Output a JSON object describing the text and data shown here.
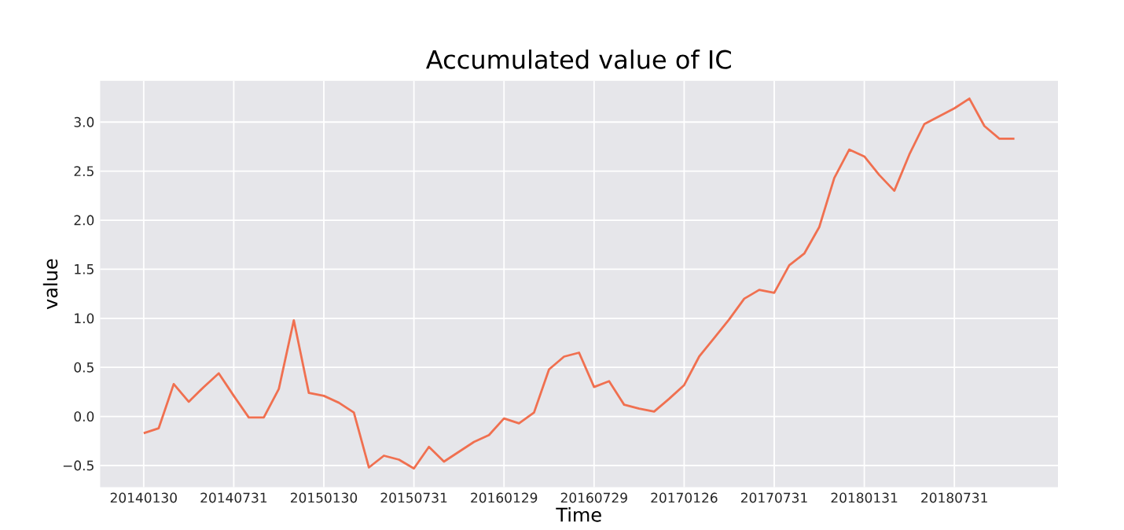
{
  "chart_data": {
    "type": "line",
    "title": "Accumulated value of IC",
    "xlabel": "Time",
    "ylabel": "value",
    "categories": [
      "20140130",
      null,
      null,
      null,
      null,
      null,
      "20140731",
      null,
      null,
      null,
      null,
      null,
      "20150130",
      null,
      null,
      null,
      null,
      null,
      "20150731",
      null,
      null,
      null,
      null,
      null,
      "20160129",
      null,
      null,
      null,
      null,
      null,
      "20160729",
      null,
      null,
      null,
      null,
      null,
      "20170126",
      null,
      null,
      null,
      null,
      null,
      "20170731",
      null,
      null,
      null,
      null,
      null,
      "20180131",
      null,
      null,
      null,
      null,
      null,
      "20180731",
      null,
      null,
      null,
      null
    ],
    "series": [
      {
        "color": "#f07050",
        "values": [
          -0.17,
          -0.12,
          0.33,
          0.15,
          0.3,
          0.44,
          0.21,
          -0.01,
          -0.01,
          0.28,
          0.98,
          0.24,
          0.21,
          0.14,
          0.04,
          -0.52,
          -0.4,
          -0.44,
          -0.53,
          -0.31,
          -0.46,
          -0.36,
          -0.26,
          -0.19,
          -0.02,
          -0.07,
          0.04,
          0.48,
          0.61,
          0.65,
          0.3,
          0.36,
          0.12,
          0.08,
          0.05,
          0.18,
          0.32,
          0.61,
          0.8,
          0.99,
          1.2,
          1.29,
          1.26,
          1.54,
          1.66,
          1.93,
          2.43,
          2.72,
          2.65,
          2.46,
          2.3,
          2.67,
          2.98,
          3.06,
          3.14,
          3.24,
          2.96,
          2.83,
          2.83
        ]
      }
    ],
    "ylim": [
      -0.72,
      3.42
    ],
    "yticks": [
      {
        "value": -0.5,
        "label": "−0.5"
      },
      {
        "value": 0,
        "label": "0.0"
      },
      {
        "value": 0.5,
        "label": "0.5"
      },
      {
        "value": 1,
        "label": "1.0"
      },
      {
        "value": 1.5,
        "label": "1.5"
      },
      {
        "value": 2,
        "label": "2.0"
      },
      {
        "value": 2.5,
        "label": "2.5"
      },
      {
        "value": 3,
        "label": "3.0"
      }
    ],
    "grid": true,
    "marker": "none",
    "line_style": "solid"
  }
}
